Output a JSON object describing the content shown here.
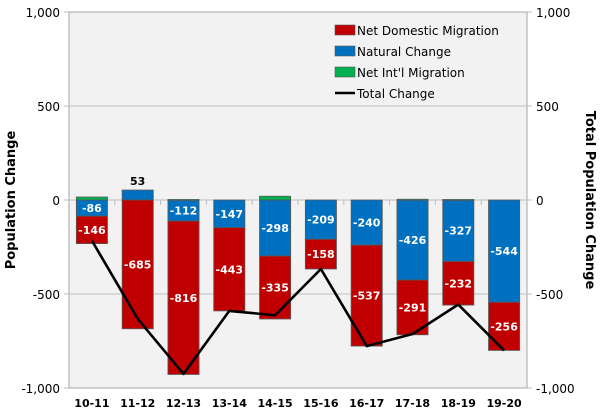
{
  "chart_data": {
    "type": "bar",
    "stacked": true,
    "categories": [
      "10-11",
      "11-12",
      "12-13",
      "13-14",
      "14-15",
      "15-16",
      "16-17",
      "17-18",
      "18-19",
      "19-20"
    ],
    "series": [
      {
        "name": "Net Domestic Migration",
        "kind": "bar",
        "color": "#c00000",
        "values": [
          -146,
          -685,
          -816,
          -443,
          -335,
          -158,
          -537,
          -291,
          -232,
          -256
        ],
        "labels": [
          "-146",
          "-685",
          "-816",
          "-443",
          "-335",
          "-158",
          "-537",
          "-291",
          "-232",
          "-256"
        ]
      },
      {
        "name": "Natural Change",
        "kind": "bar",
        "color": "#0070c0",
        "values": [
          -86,
          53,
          -112,
          -147,
          -298,
          -209,
          -240,
          -426,
          -327,
          -544
        ],
        "labels": [
          "-86",
          "53",
          "-112",
          "-147",
          "-298",
          "-209",
          "-240",
          "-426",
          "-327",
          "-544"
        ]
      },
      {
        "name": "Net Int'l Migration",
        "kind": "bar",
        "color": "#00b050",
        "values": [
          16,
          0,
          3,
          0,
          20,
          0,
          0,
          4,
          3,
          0
        ],
        "labels": []
      },
      {
        "name": "Total Change",
        "kind": "line",
        "color": "#000000",
        "values": [
          -216,
          -632,
          -925,
          -590,
          -613,
          -367,
          -777,
          -713,
          -556,
          -800
        ]
      }
    ],
    "title": "",
    "xlabel": "",
    "ylabel": "Population Change",
    "y2label": "Total Population Change",
    "ylim": [
      -1000,
      1000
    ],
    "y2lim": [
      -1000,
      1000
    ],
    "yticks": [
      "1,000",
      "500",
      "0",
      "-500",
      "-1,000"
    ],
    "ytick_values": [
      1000,
      500,
      0,
      -500,
      -1000
    ],
    "grid": true,
    "legend_position": "top-right",
    "plot_background": "#f2f2f2"
  }
}
